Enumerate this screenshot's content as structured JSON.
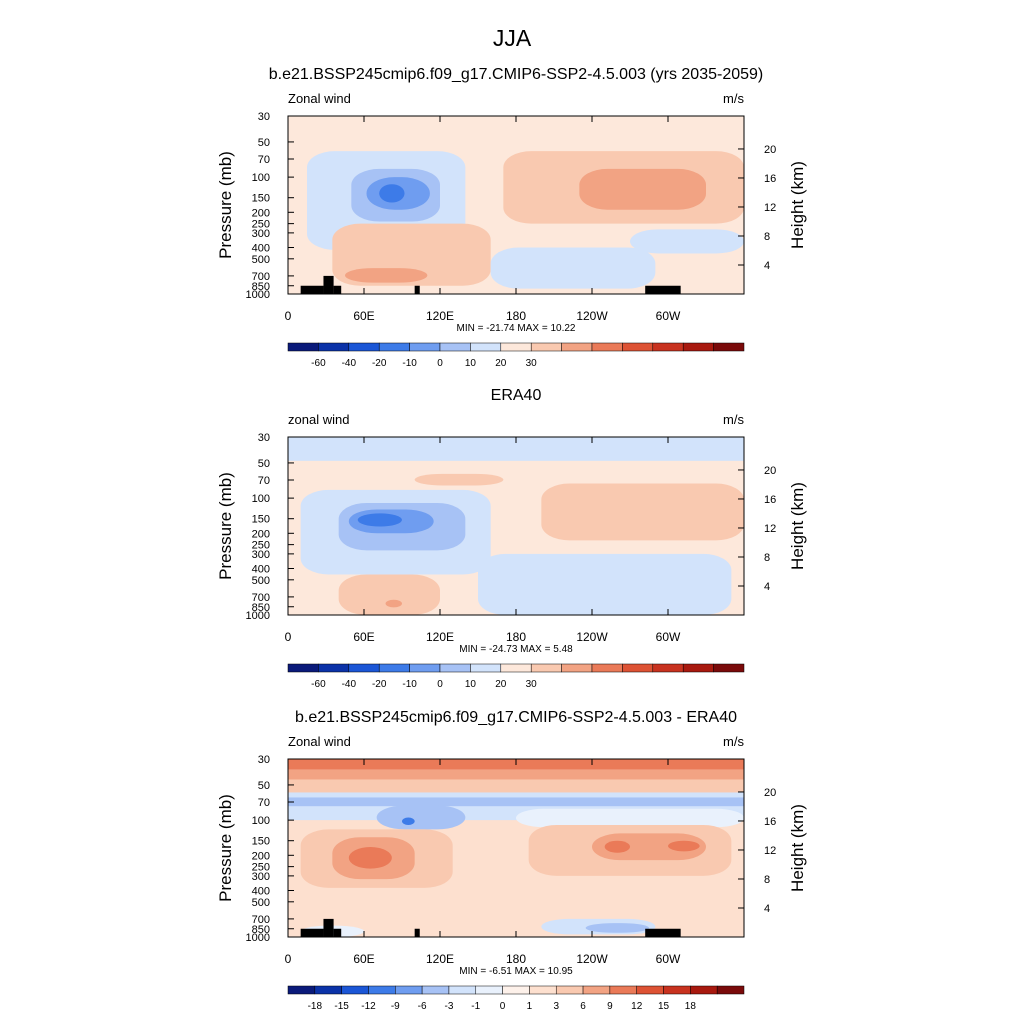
{
  "title": "JJA",
  "colors": {
    "scale_a": [
      "#0a1a7a",
      "#0b32a8",
      "#1b56d6",
      "#3d7be8",
      "#6f9df0",
      "#a7c2f5",
      "#d2e3fb",
      "#fde8db",
      "#f9c9b0",
      "#f2a383",
      "#ea7a58",
      "#dd5234",
      "#c8321f",
      "#a8190f",
      "#7a0a0a"
    ],
    "scale_b": [
      "#0a1a7a",
      "#0b32a8",
      "#1b56d6",
      "#3d7be8",
      "#6f9df0",
      "#a7c2f5",
      "#d2e3fb",
      "#e9f1fc",
      "#fdf1ea",
      "#fde0cf",
      "#f9c9b0",
      "#f2a383",
      "#ea7a58",
      "#dd5234",
      "#c8321f",
      "#a8190f",
      "#7a0a0a"
    ],
    "land": "#000000"
  },
  "chart_data": [
    {
      "type": "heatmap",
      "title": "b.e21.BSSP245cmip6.f09_g17.CMIP6-SSP2-4.5.003 (yrs 2035-2059)",
      "left_label": "Zonal wind",
      "units": "m/s",
      "ylabel": "Pressure (mb)",
      "y2label": "Height (km)",
      "xticks": [
        "0",
        "60E",
        "120E",
        "180",
        "120W",
        "60W"
      ],
      "xtick_lon": [
        0,
        60,
        120,
        180,
        240,
        300
      ],
      "xlim": [
        0,
        360
      ],
      "yticks": [
        "30",
        "50",
        "70",
        "100",
        "150",
        "200",
        "250",
        "300",
        "400",
        "500",
        "700",
        "850",
        "1000"
      ],
      "ylim_mb": [
        1000,
        30
      ],
      "y2ticks": [
        "20",
        "16",
        "12",
        "8",
        "4"
      ],
      "stats": "MIN = -21.74  MAX =  10.22",
      "colorbar_labels": [
        "-60",
        "-40",
        "-20",
        "-10",
        "0",
        "10",
        "20",
        "30"
      ],
      "colorbar_scale": "scale_a",
      "land": [
        [
          10,
          28,
          850
        ],
        [
          28,
          36,
          700
        ],
        [
          36,
          42,
          850
        ],
        [
          100,
          104,
          850
        ],
        [
          282,
          310,
          850
        ]
      ],
      "background": 7,
      "blobs": [
        {
          "lon": 0,
          "lon2": 360,
          "p1": 30,
          "p2": 60,
          "c": 7
        },
        {
          "lon": 15,
          "lon2": 140,
          "p1": 60,
          "p2": 420,
          "c": 6
        },
        {
          "lon": 50,
          "lon2": 120,
          "p1": 85,
          "p2": 240,
          "c": 5
        },
        {
          "lon": 62,
          "lon2": 112,
          "p1": 100,
          "p2": 190,
          "c": 4
        },
        {
          "lon": 72,
          "lon2": 92,
          "p1": 115,
          "p2": 165,
          "c": 3
        },
        {
          "lon": 35,
          "lon2": 160,
          "p1": 250,
          "p2": 850,
          "c": 8
        },
        {
          "lon": 45,
          "lon2": 110,
          "p1": 600,
          "p2": 800,
          "c": 9
        },
        {
          "lon": 170,
          "lon2": 360,
          "p1": 60,
          "p2": 250,
          "c": 8
        },
        {
          "lon": 230,
          "lon2": 330,
          "p1": 85,
          "p2": 190,
          "c": 9
        },
        {
          "lon": 160,
          "lon2": 290,
          "p1": 400,
          "p2": 900,
          "c": 6
        },
        {
          "lon": 270,
          "lon2": 360,
          "p1": 280,
          "p2": 450,
          "c": 6
        }
      ]
    },
    {
      "type": "heatmap",
      "title": "ERA40",
      "left_label": "zonal wind",
      "units": "m/s",
      "ylabel": "Pressure (mb)",
      "y2label": "Height (km)",
      "xticks": [
        "0",
        "60E",
        "120E",
        "180",
        "120W",
        "60W"
      ],
      "xtick_lon": [
        0,
        60,
        120,
        180,
        240,
        300
      ],
      "xlim": [
        0,
        360
      ],
      "yticks": [
        "30",
        "50",
        "70",
        "100",
        "150",
        "200",
        "250",
        "300",
        "400",
        "500",
        "700",
        "850",
        "1000"
      ],
      "ylim_mb": [
        1000,
        30
      ],
      "y2ticks": [
        "20",
        "16",
        "12",
        "8",
        "4"
      ],
      "stats": "MIN = -24.73  MAX =   5.48",
      "colorbar_labels": [
        "-60",
        "-40",
        "-20",
        "-10",
        "0",
        "10",
        "20",
        "30"
      ],
      "colorbar_scale": "scale_a",
      "land": [],
      "background": 7,
      "blobs": [
        {
          "lon": 0,
          "lon2": 360,
          "p1": 30,
          "p2": 48,
          "c": 6
        },
        {
          "lon": 10,
          "lon2": 160,
          "p1": 85,
          "p2": 450,
          "c": 6
        },
        {
          "lon": 40,
          "lon2": 140,
          "p1": 110,
          "p2": 280,
          "c": 5
        },
        {
          "lon": 48,
          "lon2": 115,
          "p1": 125,
          "p2": 200,
          "c": 4
        },
        {
          "lon": 55,
          "lon2": 90,
          "p1": 135,
          "p2": 175,
          "c": 3
        },
        {
          "lon": 100,
          "lon2": 170,
          "p1": 62,
          "p2": 78,
          "c": 8
        },
        {
          "lon": 200,
          "lon2": 360,
          "p1": 75,
          "p2": 230,
          "c": 8
        },
        {
          "lon": 150,
          "lon2": 350,
          "p1": 300,
          "p2": 1000,
          "c": 6
        },
        {
          "lon": 40,
          "lon2": 120,
          "p1": 450,
          "p2": 1000,
          "c": 8
        },
        {
          "lon": 77,
          "lon2": 90,
          "p1": 740,
          "p2": 860,
          "c": 9
        }
      ]
    },
    {
      "type": "heatmap",
      "title": "b.e21.BSSP245cmip6.f09_g17.CMIP6-SSP2-4.5.003 - ERA40",
      "left_label": "Zonal wind",
      "units": "m/s",
      "ylabel": "Pressure (mb)",
      "y2label": "Height (km)",
      "xticks": [
        "0",
        "60E",
        "120E",
        "180",
        "120W",
        "60W"
      ],
      "xtick_lon": [
        0,
        60,
        120,
        180,
        240,
        300
      ],
      "xlim": [
        0,
        360
      ],
      "yticks": [
        "30",
        "50",
        "70",
        "100",
        "150",
        "200",
        "250",
        "300",
        "400",
        "500",
        "700",
        "850",
        "1000"
      ],
      "ylim_mb": [
        1000,
        30
      ],
      "y2ticks": [
        "20",
        "16",
        "12",
        "8",
        "4"
      ],
      "stats": "MIN =  -6.51  MAX =  10.95",
      "colorbar_labels": [
        "-18",
        "-15",
        "-12",
        "-9",
        "-6",
        "-3",
        "-1",
        "0",
        "1",
        "3",
        "6",
        "9",
        "12",
        "15",
        "18"
      ],
      "colorbar_scale": "scale_b",
      "land": [
        [
          10,
          28,
          850
        ],
        [
          28,
          36,
          700
        ],
        [
          36,
          42,
          850
        ],
        [
          100,
          104,
          850
        ],
        [
          282,
          310,
          850
        ]
      ],
      "background": 9,
      "blobs": [
        {
          "lon": 0,
          "lon2": 360,
          "p1": 30,
          "p2": 37,
          "c": 12
        },
        {
          "lon": 0,
          "lon2": 360,
          "p1": 37,
          "p2": 45,
          "c": 11
        },
        {
          "lon": 0,
          "lon2": 360,
          "p1": 45,
          "p2": 58,
          "c": 10
        },
        {
          "lon": 0,
          "lon2": 360,
          "p1": 58,
          "p2": 100,
          "c": 6
        },
        {
          "lon": 0,
          "lon2": 360,
          "p1": 64,
          "p2": 76,
          "c": 5
        },
        {
          "lon": 70,
          "lon2": 140,
          "p1": 75,
          "p2": 120,
          "c": 5
        },
        {
          "lon": 90,
          "lon2": 100,
          "p1": 95,
          "p2": 110,
          "c": 3
        },
        {
          "lon": 180,
          "lon2": 360,
          "p1": 80,
          "p2": 115,
          "c": 7
        },
        {
          "lon": 10,
          "lon2": 130,
          "p1": 120,
          "p2": 380,
          "c": 10
        },
        {
          "lon": 35,
          "lon2": 100,
          "p1": 140,
          "p2": 320,
          "c": 11
        },
        {
          "lon": 48,
          "lon2": 82,
          "p1": 170,
          "p2": 260,
          "c": 12
        },
        {
          "lon": 190,
          "lon2": 350,
          "p1": 110,
          "p2": 300,
          "c": 10
        },
        {
          "lon": 240,
          "lon2": 330,
          "p1": 130,
          "p2": 220,
          "c": 11
        },
        {
          "lon": 250,
          "lon2": 270,
          "p1": 150,
          "p2": 190,
          "c": 12
        },
        {
          "lon": 300,
          "lon2": 325,
          "p1": 150,
          "p2": 185,
          "c": 12
        },
        {
          "lon": 200,
          "lon2": 290,
          "p1": 700,
          "p2": 950,
          "c": 6
        },
        {
          "lon": 235,
          "lon2": 285,
          "p1": 760,
          "p2": 920,
          "c": 5
        },
        {
          "lon": 10,
          "lon2": 60,
          "p1": 800,
          "p2": 1000,
          "c": 7
        }
      ]
    }
  ]
}
